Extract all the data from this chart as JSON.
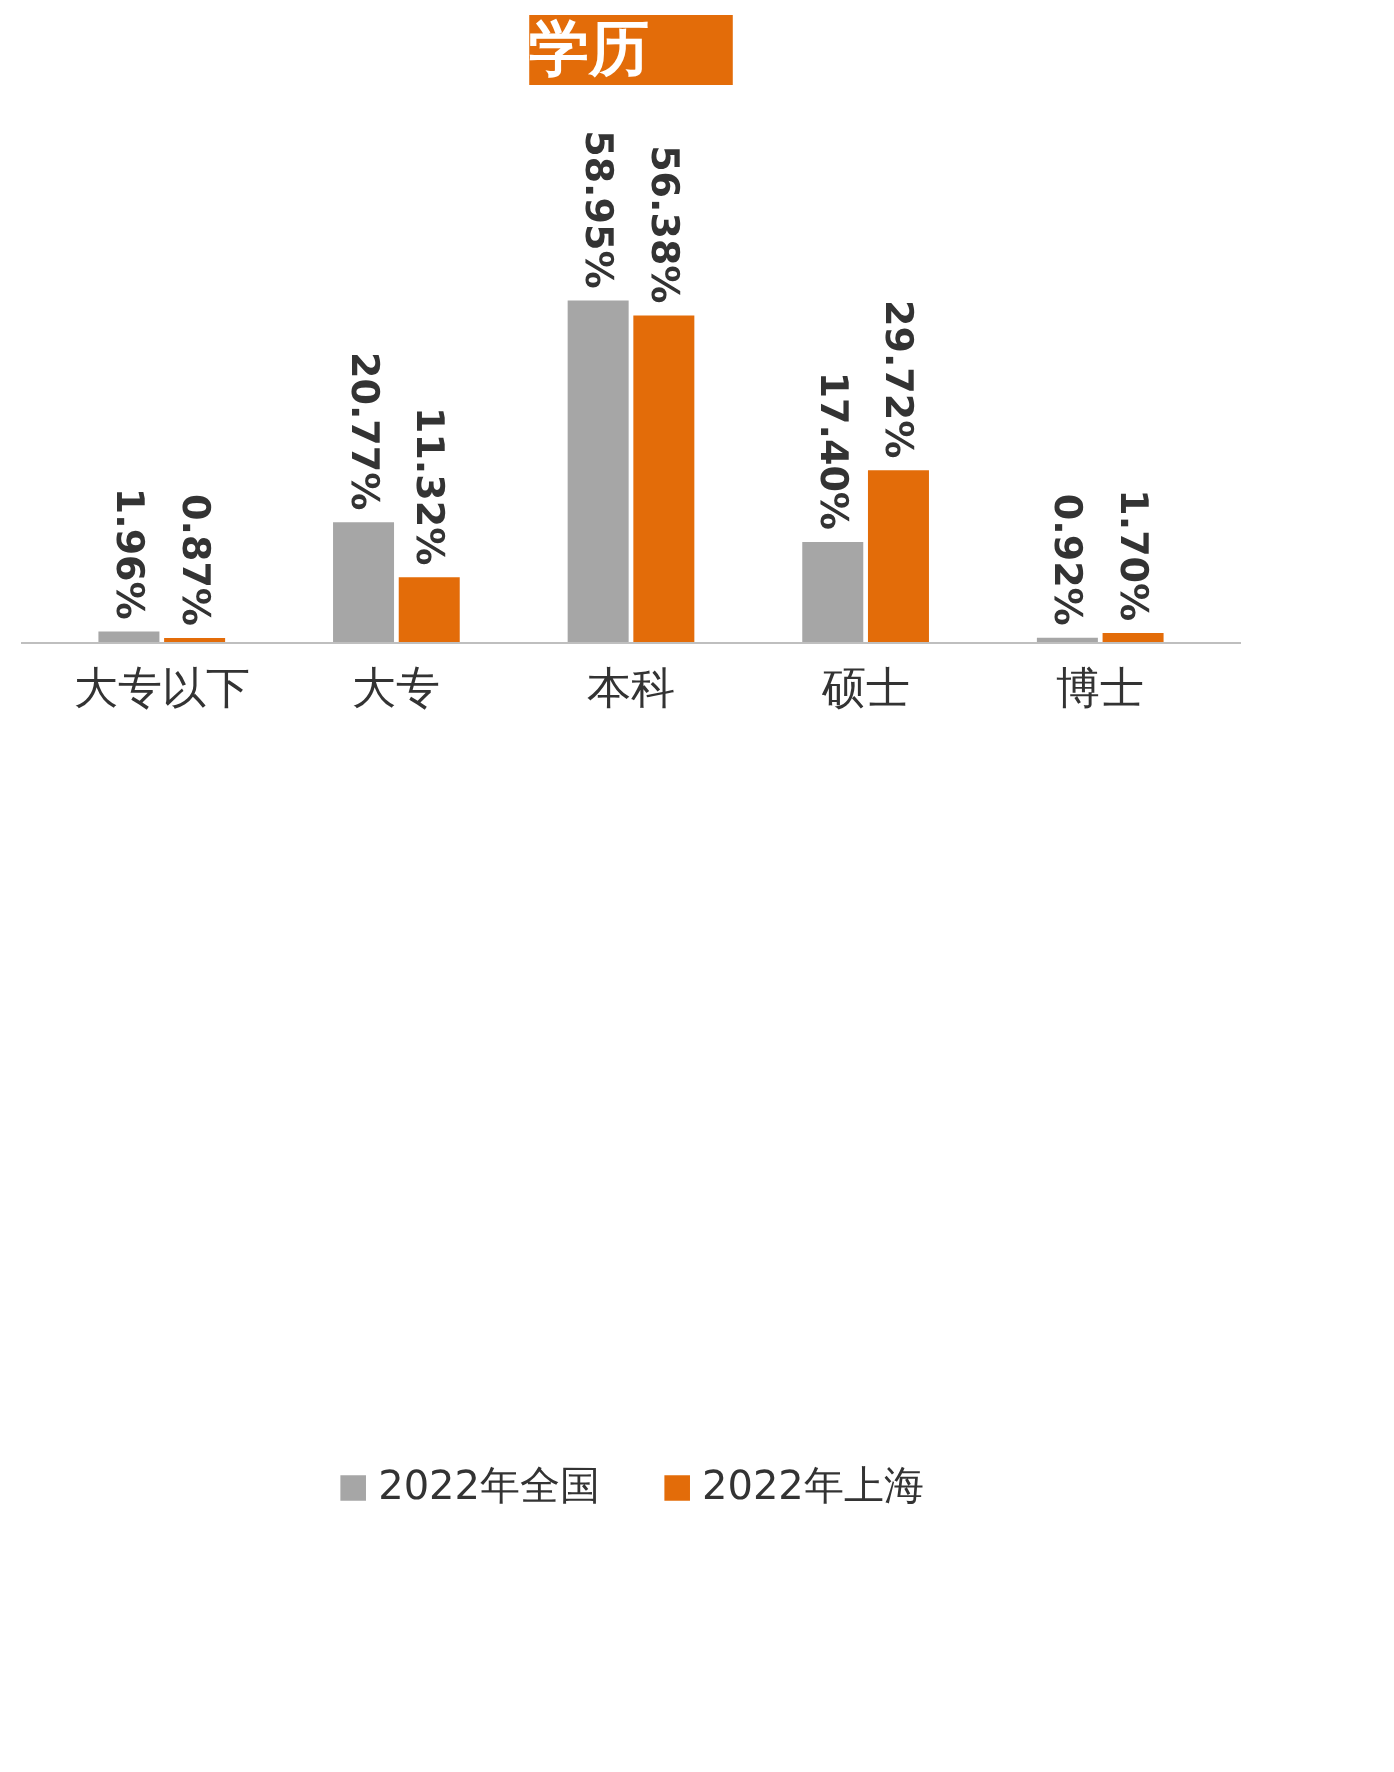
{
  "chart_data": {
    "type": "bar",
    "title": "学历",
    "categories": [
      "大专以下",
      "大专",
      "本科",
      "硕士",
      "博士"
    ],
    "series": [
      {
        "name": "2022年全国",
        "color": "#a6a6a6",
        "values": [
          1.96,
          20.77,
          58.95,
          17.4,
          0.92
        ],
        "value_labels": [
          "1.96%",
          "20.77%",
          "58.95%",
          "17.40%",
          "0.92%"
        ]
      },
      {
        "name": "2022年上海",
        "color": "#e36c09",
        "values": [
          0.87,
          11.32,
          56.38,
          29.72,
          1.7
        ],
        "value_labels": [
          "0.87%",
          "11.32%",
          "56.38%",
          "29.72%",
          "1.70%"
        ]
      }
    ],
    "legend": "bottom",
    "grid": false
  }
}
